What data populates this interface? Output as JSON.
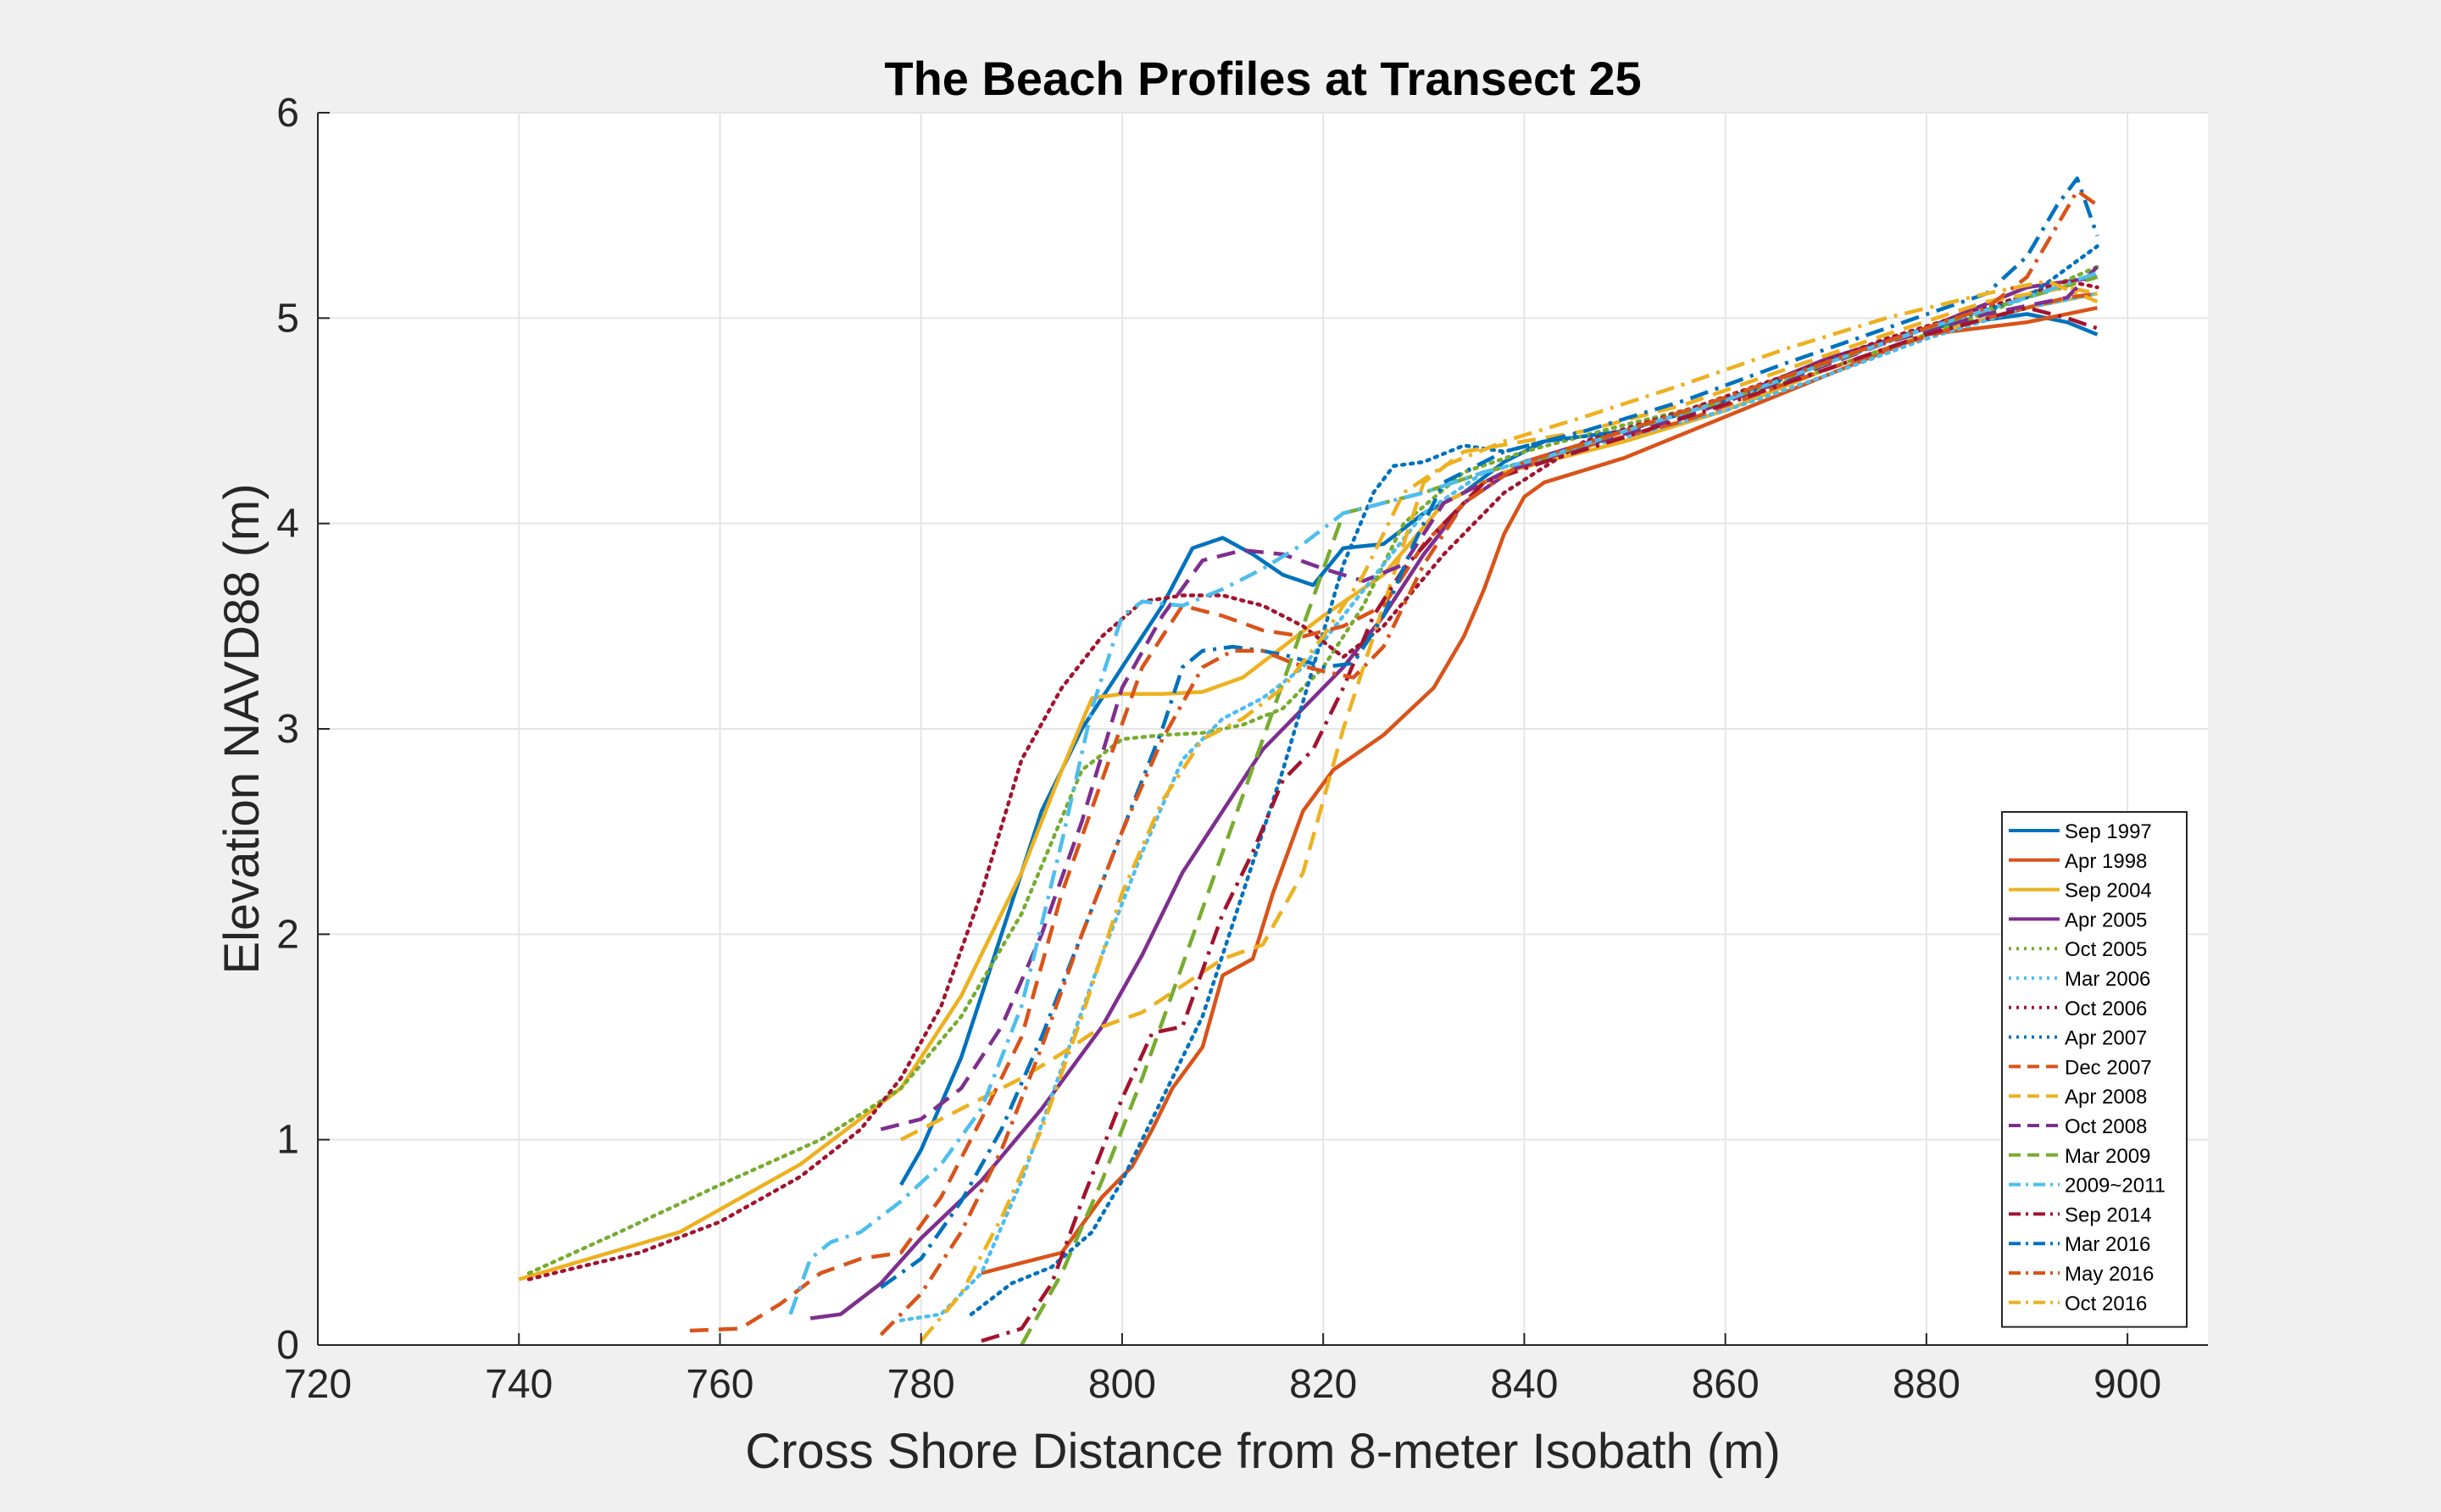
{
  "chart_data": {
    "type": "line",
    "title": "The Beach Profiles at Transect 25",
    "xlabel": "Cross Shore Distance from 8-meter Isobath (m)",
    "ylabel": "Elevation NAVD88 (m)",
    "xlim": [
      720,
      908
    ],
    "ylim": [
      0,
      6
    ],
    "xticks": [
      720,
      740,
      760,
      780,
      800,
      820,
      840,
      860,
      880,
      900
    ],
    "yticks": [
      0,
      1,
      2,
      3,
      4,
      5,
      6
    ],
    "grid": true,
    "legend_position": "bottom-right",
    "series": [
      {
        "name": "Sep 1997",
        "color": "#0072BD",
        "style": "solid",
        "x": [
          778,
          780,
          784,
          788,
          792,
          796,
          800,
          804,
          807,
          810,
          813,
          816,
          819,
          822,
          826,
          830,
          834,
          838,
          842,
          850,
          860,
          870,
          880,
          890,
          894,
          897
        ],
        "y": [
          0.78,
          0.95,
          1.4,
          2.0,
          2.6,
          3.0,
          3.3,
          3.6,
          3.88,
          3.93,
          3.85,
          3.75,
          3.7,
          3.88,
          3.9,
          4.05,
          4.15,
          4.3,
          4.4,
          4.45,
          4.6,
          4.8,
          4.95,
          5.02,
          4.98,
          4.92
        ]
      },
      {
        "name": "Apr 1998",
        "color": "#D95319",
        "style": "solid",
        "x": [
          786,
          790,
          794,
          798,
          801,
          803,
          805,
          808,
          810,
          813,
          815,
          818,
          821,
          826,
          831,
          834,
          836,
          838,
          840,
          842,
          850,
          860,
          870,
          880,
          890,
          897
        ],
        "y": [
          0.35,
          0.4,
          0.45,
          0.72,
          0.87,
          1.05,
          1.25,
          1.45,
          1.8,
          1.88,
          2.2,
          2.6,
          2.8,
          2.97,
          3.2,
          3.45,
          3.68,
          3.95,
          4.13,
          4.2,
          4.32,
          4.52,
          4.72,
          4.92,
          4.98,
          5.05
        ]
      },
      {
        "name": "Sep 2004",
        "color": "#EDB120",
        "style": "solid",
        "x": [
          740,
          756,
          768,
          778,
          784,
          790,
          794,
          797,
          800,
          804,
          808,
          812,
          816,
          820,
          826,
          832,
          838,
          850,
          860,
          870,
          880,
          890,
          897
        ],
        "y": [
          0.32,
          0.55,
          0.88,
          1.25,
          1.7,
          2.3,
          2.8,
          3.15,
          3.17,
          3.17,
          3.18,
          3.25,
          3.4,
          3.55,
          3.75,
          4.1,
          4.25,
          4.4,
          4.55,
          4.75,
          4.92,
          5.05,
          5.12
        ]
      },
      {
        "name": "Apr 2005",
        "color": "#7E2F8E",
        "style": "solid",
        "x": [
          769,
          772,
          776,
          780,
          786,
          792,
          798,
          802,
          806,
          810,
          814,
          818,
          822,
          826,
          830,
          834,
          840,
          850,
          860,
          870,
          880,
          890,
          897
        ],
        "y": [
          0.13,
          0.15,
          0.3,
          0.52,
          0.8,
          1.15,
          1.55,
          1.9,
          2.3,
          2.6,
          2.9,
          3.1,
          3.3,
          3.55,
          3.85,
          4.1,
          4.3,
          4.45,
          4.6,
          4.8,
          4.95,
          5.15,
          5.2
        ]
      },
      {
        "name": "Oct 2005",
        "color": "#77AC30",
        "style": "dotted",
        "x": [
          741,
          750,
          760,
          770,
          778,
          784,
          790,
          796,
          800,
          804,
          808,
          812,
          816,
          820,
          824,
          828,
          834,
          840,
          850,
          860,
          870,
          880,
          890,
          897
        ],
        "y": [
          0.35,
          0.55,
          0.78,
          1.0,
          1.25,
          1.6,
          2.1,
          2.8,
          2.95,
          2.97,
          2.98,
          3.02,
          3.1,
          3.3,
          3.6,
          4.0,
          4.25,
          4.35,
          4.48,
          4.6,
          4.75,
          4.92,
          5.1,
          5.25
        ]
      },
      {
        "name": "Mar 2006",
        "color": "#4DBEEE",
        "style": "dotted",
        "x": [
          778,
          782,
          786,
          790,
          794,
          798,
          802,
          806,
          810,
          814,
          818,
          822,
          826,
          830,
          836,
          840,
          850,
          860,
          870,
          880,
          890,
          897
        ],
        "y": [
          0.12,
          0.15,
          0.35,
          0.8,
          1.35,
          1.9,
          2.4,
          2.85,
          3.05,
          3.15,
          3.3,
          3.55,
          3.8,
          4.05,
          4.25,
          4.3,
          4.42,
          4.55,
          4.72,
          4.9,
          5.05,
          5.12
        ]
      },
      {
        "name": "Oct 2006",
        "color": "#A2142F",
        "style": "dotted",
        "x": [
          741,
          746,
          752,
          760,
          768,
          774,
          778,
          782,
          786,
          790,
          794,
          798,
          802,
          806,
          810,
          814,
          818,
          822,
          826,
          832,
          838,
          846,
          856,
          866,
          876,
          886,
          894,
          897
        ],
        "y": [
          0.32,
          0.38,
          0.45,
          0.6,
          0.82,
          1.05,
          1.3,
          1.65,
          2.2,
          2.85,
          3.2,
          3.45,
          3.62,
          3.65,
          3.65,
          3.6,
          3.5,
          3.35,
          3.5,
          3.85,
          4.15,
          4.4,
          4.55,
          4.72,
          4.9,
          5.05,
          5.18,
          5.15
        ]
      },
      {
        "name": "Apr 2007",
        "color": "#0072BD",
        "style": "dotted",
        "x": [
          785,
          789,
          793,
          797,
          800,
          804,
          808,
          812,
          816,
          819,
          822,
          825,
          827,
          830,
          834,
          838,
          842,
          850,
          860,
          870,
          880,
          890,
          897
        ],
        "y": [
          0.15,
          0.3,
          0.38,
          0.55,
          0.8,
          1.2,
          1.6,
          2.2,
          2.8,
          3.3,
          3.8,
          4.15,
          4.28,
          4.3,
          4.38,
          4.35,
          4.4,
          4.45,
          4.6,
          4.78,
          4.95,
          5.1,
          5.35
        ]
      },
      {
        "name": "Dec 2007",
        "color": "#D95319",
        "style": "dashed",
        "x": [
          757,
          762,
          766,
          770,
          774,
          778,
          782,
          786,
          790,
          794,
          798,
          802,
          806,
          810,
          814,
          818,
          822,
          826,
          830,
          836,
          844,
          856,
          866,
          876,
          886,
          894,
          897
        ],
        "y": [
          0.07,
          0.08,
          0.2,
          0.35,
          0.42,
          0.45,
          0.72,
          1.1,
          1.5,
          2.2,
          2.75,
          3.3,
          3.6,
          3.55,
          3.48,
          3.45,
          3.5,
          3.6,
          3.9,
          4.2,
          4.35,
          4.5,
          4.68,
          4.85,
          5.0,
          5.1,
          5.12
        ]
      },
      {
        "name": "Apr 2008",
        "color": "#EDB120",
        "style": "dashed",
        "x": [
          778,
          782,
          786,
          790,
          794,
          798,
          802,
          806,
          810,
          814,
          818,
          822,
          826,
          830,
          834,
          840,
          846,
          856,
          866,
          876,
          886,
          894,
          897
        ],
        "y": [
          1.0,
          1.1,
          1.2,
          1.3,
          1.42,
          1.55,
          1.62,
          1.75,
          1.88,
          1.95,
          2.3,
          3.0,
          3.6,
          4.2,
          4.35,
          4.4,
          4.45,
          4.58,
          4.75,
          4.92,
          5.08,
          5.15,
          5.12
        ]
      },
      {
        "name": "Oct 2008",
        "color": "#7E2F8E",
        "style": "dashed",
        "x": [
          776,
          780,
          784,
          788,
          792,
          796,
          800,
          804,
          808,
          812,
          816,
          820,
          824,
          828,
          832,
          838,
          846,
          856,
          866,
          876,
          886,
          894,
          897
        ],
        "y": [
          1.05,
          1.1,
          1.25,
          1.55,
          2.0,
          2.55,
          3.2,
          3.55,
          3.82,
          3.87,
          3.85,
          3.78,
          3.72,
          3.8,
          4.1,
          4.25,
          4.38,
          4.52,
          4.7,
          4.88,
          5.02,
          5.1,
          5.25
        ]
      },
      {
        "name": "Mar 2009",
        "color": "#77AC30",
        "style": "dashed",
        "x": [
          790,
          794,
          798,
          802,
          806,
          810,
          814,
          818,
          822,
          826,
          830,
          836,
          842,
          850,
          860,
          870,
          880,
          890,
          897
        ],
        "y": [
          0.0,
          0.35,
          0.8,
          1.3,
          1.85,
          2.4,
          2.95,
          3.5,
          4.05,
          4.1,
          4.15,
          4.25,
          4.32,
          4.45,
          4.6,
          4.78,
          4.95,
          5.1,
          5.2
        ]
      },
      {
        "name": "2009~2011",
        "color": "#4DBEEE",
        "style": "dashdot",
        "x": [
          767,
          769,
          771,
          774,
          778,
          782,
          786,
          790,
          794,
          797,
          800,
          802,
          806,
          810,
          814,
          818,
          822,
          826,
          830,
          836,
          842,
          850,
          860,
          870,
          880,
          890,
          897
        ],
        "y": [
          0.15,
          0.42,
          0.5,
          0.55,
          0.7,
          0.88,
          1.15,
          1.65,
          2.45,
          3.1,
          3.55,
          3.62,
          3.6,
          3.68,
          3.78,
          3.9,
          4.05,
          4.1,
          4.15,
          4.25,
          4.32,
          4.45,
          4.6,
          4.78,
          4.95,
          5.1,
          5.22
        ]
      },
      {
        "name": "Sep 2014",
        "color": "#A2142F",
        "style": "dashdot",
        "x": [
          786,
          790,
          793,
          796,
          800,
          803,
          806,
          810,
          813,
          816,
          819,
          822,
          825,
          828,
          832,
          836,
          842,
          850,
          860,
          870,
          880,
          890,
          894,
          897
        ],
        "y": [
          0.02,
          0.08,
          0.3,
          0.7,
          1.2,
          1.52,
          1.55,
          2.1,
          2.4,
          2.75,
          2.9,
          3.2,
          3.55,
          3.78,
          4.0,
          4.2,
          4.3,
          4.42,
          4.58,
          4.75,
          4.92,
          5.05,
          5.0,
          4.95
        ]
      },
      {
        "name": "Mar 2016",
        "color": "#0072BD",
        "style": "dashdot",
        "x": [
          776,
          780,
          784,
          788,
          792,
          796,
          800,
          804,
          806,
          808,
          811,
          814,
          817,
          820,
          823,
          826,
          829,
          832,
          838,
          846,
          856,
          866,
          876,
          886,
          890,
          893,
          895,
          897
        ],
        "y": [
          0.28,
          0.42,
          0.7,
          1.05,
          1.5,
          2.0,
          2.5,
          3.0,
          3.3,
          3.38,
          3.4,
          3.38,
          3.35,
          3.3,
          3.32,
          3.55,
          3.9,
          4.2,
          4.35,
          4.45,
          4.6,
          4.78,
          4.95,
          5.12,
          5.3,
          5.55,
          5.68,
          5.4
        ]
      },
      {
        "name": "May 2016",
        "color": "#D95319",
        "style": "dashdot",
        "x": [
          776,
          780,
          784,
          788,
          792,
          796,
          800,
          804,
          808,
          811,
          814,
          817,
          820,
          823,
          826,
          830,
          834,
          840,
          848,
          858,
          868,
          878,
          886,
          890,
          893,
          895,
          897
        ],
        "y": [
          0.05,
          0.25,
          0.55,
          0.95,
          1.45,
          2.0,
          2.5,
          2.95,
          3.3,
          3.38,
          3.38,
          3.32,
          3.28,
          3.25,
          3.4,
          3.8,
          4.1,
          4.3,
          4.42,
          4.58,
          4.75,
          4.92,
          5.05,
          5.2,
          5.45,
          5.62,
          5.55
        ]
      },
      {
        "name": "Oct 2016",
        "color": "#EDB120",
        "style": "dashdot",
        "x": [
          780,
          784,
          788,
          792,
          796,
          800,
          804,
          808,
          812,
          816,
          820,
          824,
          828,
          832,
          838,
          846,
          856,
          866,
          876,
          886,
          892,
          897
        ],
        "y": [
          0.02,
          0.25,
          0.62,
          1.05,
          1.6,
          2.2,
          2.65,
          2.95,
          3.05,
          3.2,
          3.45,
          3.75,
          4.15,
          4.28,
          4.4,
          4.52,
          4.68,
          4.85,
          5.0,
          5.12,
          5.18,
          5.08
        ]
      }
    ]
  }
}
